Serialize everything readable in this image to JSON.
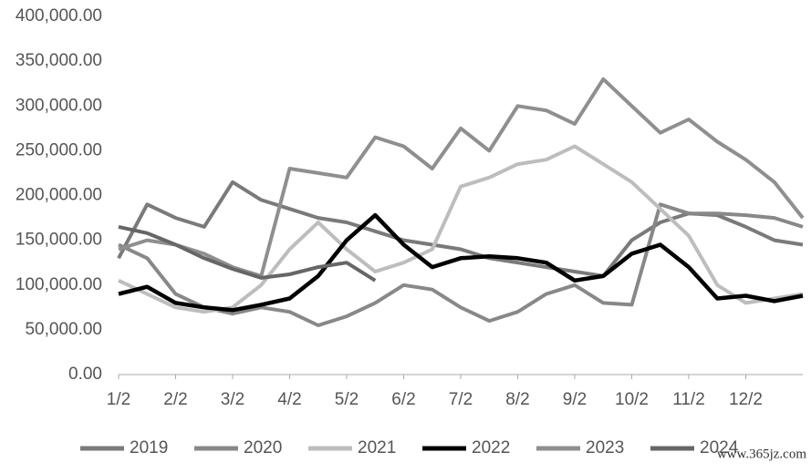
{
  "chart_data": {
    "type": "line",
    "categories": [
      "1/2",
      null,
      "2/2",
      null,
      "3/2",
      null,
      "4/2",
      null,
      "5/2",
      null,
      "6/2",
      null,
      "7/2",
      null,
      "8/2",
      null,
      "9/2",
      null,
      "10/2",
      null,
      "11/2",
      null,
      "12/2",
      null,
      null
    ],
    "ylim": [
      0,
      400000
    ],
    "yticks": [
      {
        "value": 0,
        "label": "0.00"
      },
      {
        "value": 50000,
        "label": "50,000.00"
      },
      {
        "value": 100000,
        "label": "100,000.00"
      },
      {
        "value": 150000,
        "label": "150,000.00"
      },
      {
        "value": 200000,
        "label": "200,000.00"
      },
      {
        "value": 250000,
        "label": "250,000.00"
      },
      {
        "value": 300000,
        "label": "300,000.00"
      },
      {
        "value": 350000,
        "label": "350,000.00"
      },
      {
        "value": 400000,
        "label": "400,000.00"
      }
    ],
    "legend": "bottom",
    "series": [
      {
        "name": "2019",
        "color": "#7a7a7a",
        "values": [
          130000,
          190000,
          175000,
          165000,
          215000,
          195000,
          185000,
          175000,
          170000,
          160000,
          150000,
          145000,
          140000,
          130000,
          125000,
          120000,
          115000,
          110000,
          150000,
          170000,
          180000,
          178000,
          165000,
          150000,
          145000
        ]
      },
      {
        "name": "2020",
        "color": "#888888",
        "values": [
          145000,
          130000,
          90000,
          75000,
          68000,
          75000,
          70000,
          55000,
          65000,
          80000,
          100000,
          95000,
          75000,
          60000,
          70000,
          90000,
          100000,
          80000,
          78000,
          190000,
          180000,
          180000,
          178000,
          175000,
          165000
        ]
      },
      {
        "name": "2021",
        "color": "#bdbdbd",
        "values": [
          105000,
          90000,
          75000,
          70000,
          75000,
          100000,
          140000,
          170000,
          140000,
          115000,
          125000,
          140000,
          210000,
          220000,
          235000,
          240000,
          255000,
          235000,
          215000,
          185000,
          155000,
          100000,
          80000,
          85000,
          90000
        ]
      },
      {
        "name": "2022",
        "color": "#000000",
        "values": [
          90000,
          98000,
          80000,
          75000,
          72000,
          78000,
          85000,
          110000,
          150000,
          178000,
          145000,
          120000,
          130000,
          132000,
          130000,
          125000,
          105000,
          110000,
          135000,
          145000,
          120000,
          85000,
          88000,
          82000,
          88000
        ]
      },
      {
        "name": "2023",
        "color": "#8f8f8f",
        "values": [
          140000,
          150000,
          145000,
          135000,
          120000,
          110000,
          230000,
          225000,
          220000,
          265000,
          255000,
          230000,
          275000,
          250000,
          300000,
          295000,
          280000,
          330000,
          300000,
          270000,
          285000,
          260000,
          240000,
          215000,
          175000
        ]
      },
      {
        "name": "2024",
        "color": "#666666",
        "values": [
          165000,
          158000,
          145000,
          130000,
          118000,
          108000,
          112000,
          120000,
          125000,
          105000,
          null,
          null,
          null,
          null,
          null,
          null,
          null,
          null,
          null,
          null,
          null,
          null,
          null,
          null,
          null
        ]
      }
    ],
    "watermark": "www.365jz.com"
  }
}
